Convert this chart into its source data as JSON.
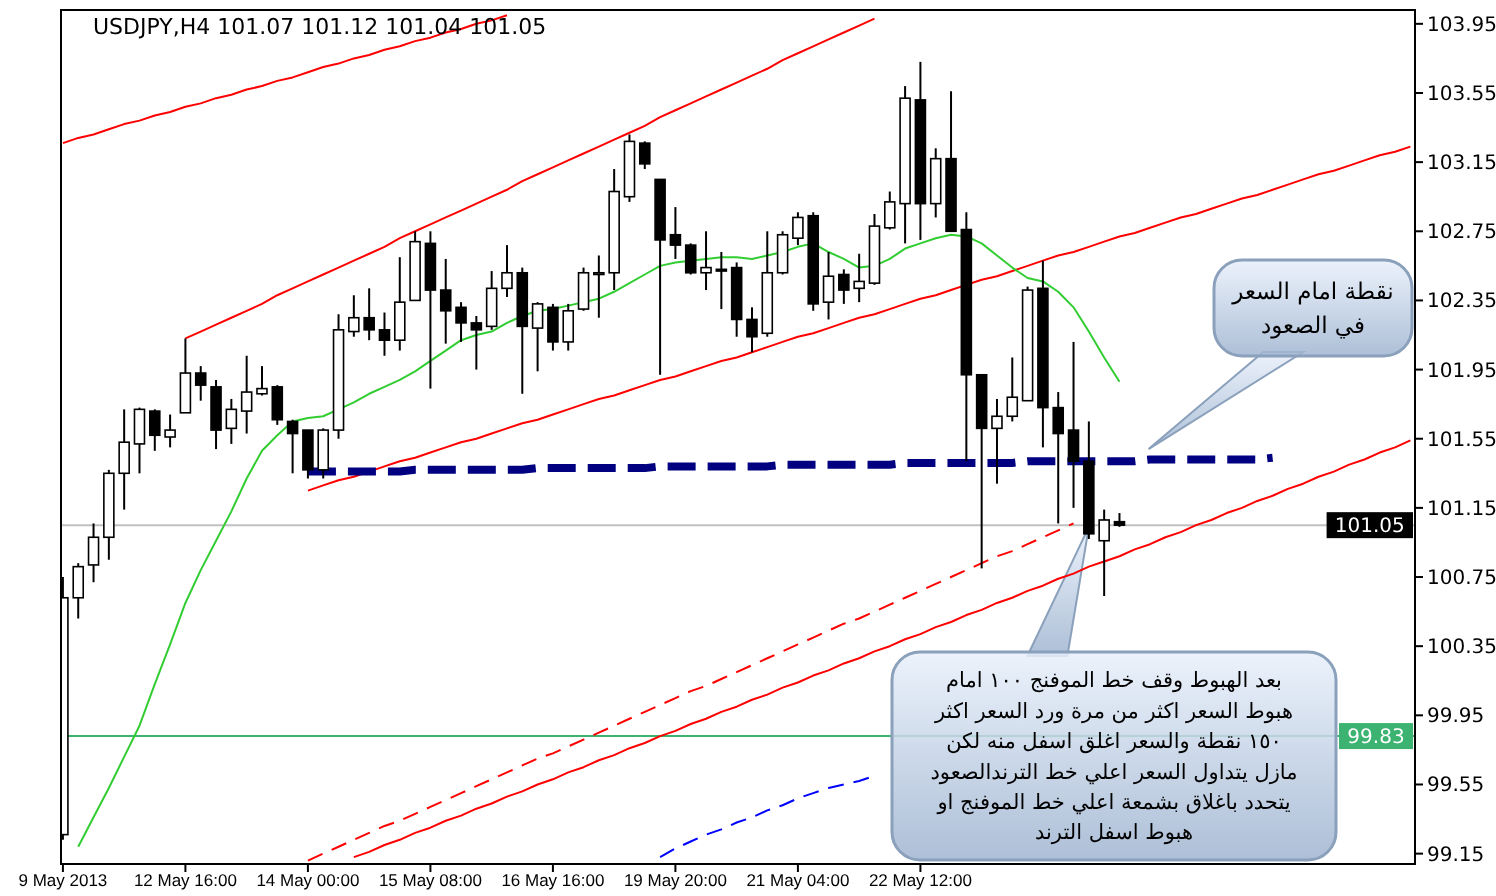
{
  "chart_data": {
    "type": "candlestick",
    "title": "USDJPY,H4  101.07 101.12 101.04 101.05",
    "categories": [
      "9 May 2013",
      null,
      null,
      null,
      null,
      null,
      null,
      null,
      "12 May 16:00",
      null,
      null,
      null,
      null,
      null,
      null,
      null,
      "14 May 00:00",
      null,
      null,
      null,
      null,
      null,
      null,
      null,
      "15 May 08:00",
      null,
      null,
      null,
      null,
      null,
      null,
      null,
      "16 May 16:00",
      null,
      null,
      null,
      null,
      null,
      null,
      null,
      "19 May 20:00",
      null,
      null,
      null,
      null,
      null,
      null,
      null,
      "21 May 04:00",
      null,
      null,
      null,
      null,
      null,
      null,
      null,
      "22 May 12:00",
      null,
      null,
      null,
      null,
      null,
      null,
      null,
      null,
      null,
      null,
      null,
      null,
      null,
      null,
      null,
      null,
      null,
      null,
      null,
      null,
      null,
      null,
      null,
      null,
      null,
      null,
      null,
      null,
      null,
      null,
      null,
      null
    ],
    "ohlc": [
      [
        99.26,
        100.75,
        99.23,
        100.63
      ],
      [
        100.63,
        100.83,
        100.51,
        100.81
      ],
      [
        100.82,
        101.06,
        100.72,
        100.98
      ],
      [
        100.98,
        101.37,
        100.85,
        101.35
      ],
      [
        101.35,
        101.72,
        101.14,
        101.53
      ],
      [
        101.52,
        101.73,
        101.35,
        101.72
      ],
      [
        101.71,
        101.72,
        101.48,
        101.57
      ],
      [
        101.56,
        101.69,
        101.5,
        101.6
      ],
      [
        101.7,
        102.13,
        101.7,
        101.93
      ],
      [
        101.93,
        101.97,
        101.77,
        101.86
      ],
      [
        101.85,
        101.89,
        101.49,
        101.6
      ],
      [
        101.61,
        101.78,
        101.52,
        101.72
      ],
      [
        101.71,
        102.03,
        101.58,
        101.82
      ],
      [
        101.81,
        101.97,
        101.8,
        101.84
      ],
      [
        101.85,
        101.86,
        101.63,
        101.66
      ],
      [
        101.65,
        101.66,
        101.35,
        101.58
      ],
      [
        101.6,
        101.6,
        101.32,
        101.37
      ],
      [
        101.37,
        101.61,
        101.32,
        101.6
      ],
      [
        101.6,
        102.27,
        101.55,
        102.18
      ],
      [
        102.17,
        102.38,
        102.14,
        102.25
      ],
      [
        102.25,
        102.42,
        102.12,
        102.18
      ],
      [
        102.18,
        102.28,
        102.03,
        102.12
      ],
      [
        102.12,
        102.6,
        102.06,
        102.34
      ],
      [
        102.35,
        102.75,
        102.35,
        102.69
      ],
      [
        102.68,
        102.75,
        101.84,
        102.41
      ],
      [
        102.41,
        102.59,
        102.1,
        102.29
      ],
      [
        102.31,
        102.34,
        102.11,
        102.22
      ],
      [
        102.22,
        102.26,
        101.95,
        102.18
      ],
      [
        102.2,
        102.52,
        102.18,
        102.42
      ],
      [
        102.42,
        102.67,
        102.37,
        102.51
      ],
      [
        102.51,
        102.54,
        101.81,
        102.2
      ],
      [
        102.19,
        102.34,
        101.94,
        102.33
      ],
      [
        102.31,
        102.33,
        102.06,
        102.11
      ],
      [
        102.11,
        102.33,
        102.06,
        102.29
      ],
      [
        102.3,
        102.54,
        102.29,
        102.51
      ],
      [
        102.5,
        102.61,
        102.25,
        102.51
      ],
      [
        102.51,
        103.11,
        102.41,
        102.98
      ],
      [
        102.95,
        103.31,
        102.92,
        103.27
      ],
      [
        103.26,
        103.27,
        103.11,
        103.14
      ],
      [
        103.05,
        103.05,
        101.92,
        102.7
      ],
      [
        102.73,
        102.89,
        102.59,
        102.67
      ],
      [
        102.67,
        102.68,
        102.5,
        102.51
      ],
      [
        102.51,
        102.75,
        102.41,
        102.54
      ],
      [
        102.53,
        102.63,
        102.3,
        102.52
      ],
      [
        102.54,
        102.57,
        102.14,
        102.24
      ],
      [
        102.24,
        102.31,
        102.05,
        102.14
      ],
      [
        102.16,
        102.75,
        102.14,
        102.51
      ],
      [
        102.51,
        102.75,
        102.5,
        102.73
      ],
      [
        102.71,
        102.86,
        102.67,
        102.83
      ],
      [
        102.84,
        102.86,
        102.29,
        102.33
      ],
      [
        102.34,
        102.63,
        102.24,
        102.49
      ],
      [
        102.5,
        102.53,
        102.33,
        102.41
      ],
      [
        102.42,
        102.62,
        102.34,
        102.46
      ],
      [
        102.45,
        102.85,
        102.44,
        102.78
      ],
      [
        102.77,
        102.98,
        102.76,
        102.92
      ],
      [
        102.91,
        103.59,
        102.68,
        103.52
      ],
      [
        103.51,
        103.73,
        102.7,
        102.91
      ],
      [
        102.91,
        103.23,
        102.83,
        103.17
      ],
      [
        103.17,
        103.56,
        102.75,
        102.75
      ],
      [
        102.76,
        102.86,
        101.42,
        101.92
      ],
      [
        101.92,
        101.92,
        100.8,
        101.61
      ],
      [
        101.61,
        101.78,
        101.29,
        101.68
      ],
      [
        101.68,
        102.02,
        101.65,
        101.79
      ],
      [
        101.77,
        102.43,
        101.77,
        102.41
      ],
      [
        102.42,
        102.58,
        101.5,
        101.73
      ],
      [
        101.73,
        101.82,
        101.06,
        101.58
      ],
      [
        101.6,
        102.11,
        101.15,
        101.42
      ],
      [
        101.42,
        101.65,
        100.97,
        101.0
      ],
      [
        100.96,
        101.14,
        100.64,
        101.08
      ],
      [
        101.07,
        101.12,
        101.04,
        101.05
      ],
      null,
      null,
      null,
      null,
      null,
      null,
      null,
      null,
      null,
      null,
      null,
      null,
      null,
      null,
      null,
      null,
      null,
      null,
      null
    ],
    "series": [
      {
        "type": "line",
        "color": "#ff0000",
        "line_style": "solid",
        "values": [
          103.26,
          103.29,
          103.31,
          103.34,
          103.37,
          103.39,
          103.42,
          103.44,
          103.47,
          103.49,
          103.52,
          103.54,
          103.57,
          103.59,
          103.62,
          103.64,
          103.67,
          103.7,
          103.72,
          103.75,
          103.77,
          103.8,
          103.82,
          103.85,
          103.87,
          103.9,
          103.92,
          103.95,
          103.97,
          104.0,
          null,
          null,
          null,
          null,
          null,
          null,
          null,
          null,
          null,
          null,
          null,
          null,
          null,
          null,
          null,
          null,
          null,
          null,
          null,
          null,
          null,
          null,
          null,
          null,
          null,
          null,
          null,
          null,
          null,
          null,
          null,
          null,
          null,
          null,
          null,
          null,
          null,
          null,
          null,
          null,
          null,
          null,
          null,
          null,
          null,
          null,
          null,
          null,
          null,
          null,
          null,
          null,
          null,
          null,
          null,
          null,
          null,
          null,
          null
        ]
      },
      {
        "type": "line",
        "color": "#ff0000",
        "line_style": "solid",
        "values": [
          null,
          null,
          null,
          null,
          null,
          null,
          null,
          null,
          102.13,
          102.17,
          102.21,
          102.25,
          102.29,
          102.33,
          102.38,
          102.42,
          102.46,
          102.5,
          102.54,
          102.58,
          102.62,
          102.66,
          102.71,
          102.75,
          102.79,
          102.83,
          102.87,
          102.91,
          102.95,
          102.99,
          103.04,
          103.08,
          103.12,
          103.16,
          103.2,
          103.24,
          103.28,
          103.32,
          103.36,
          103.41,
          103.45,
          103.49,
          103.53,
          103.57,
          103.61,
          103.65,
          103.69,
          103.74,
          103.78,
          103.82,
          103.86,
          103.9,
          103.94,
          103.98,
          null,
          null,
          null,
          null,
          null,
          null,
          null,
          null,
          null,
          null,
          null,
          null,
          null,
          null,
          null,
          null,
          null,
          null,
          null,
          null,
          null,
          null,
          null,
          null,
          null,
          null,
          null,
          null,
          null,
          null,
          null,
          null,
          null,
          null,
          null
        ]
      },
      {
        "type": "line",
        "color": "#ff0000",
        "line_style": "solid",
        "values": [
          null,
          null,
          null,
          null,
          null,
          null,
          null,
          null,
          null,
          null,
          null,
          null,
          null,
          null,
          null,
          null,
          101.25,
          101.28,
          101.31,
          101.33,
          101.36,
          101.39,
          101.42,
          101.44,
          101.47,
          101.5,
          101.53,
          101.55,
          101.58,
          101.61,
          101.64,
          101.66,
          101.69,
          101.72,
          101.75,
          101.78,
          101.8,
          101.83,
          101.86,
          101.89,
          101.91,
          101.94,
          101.97,
          102.0,
          102.02,
          102.05,
          102.08,
          102.11,
          102.14,
          102.16,
          102.19,
          102.22,
          102.25,
          102.27,
          102.3,
          102.33,
          102.36,
          102.38,
          102.41,
          102.44,
          102.47,
          102.49,
          102.52,
          102.55,
          102.58,
          102.61,
          102.63,
          102.66,
          102.69,
          102.72,
          102.74,
          102.77,
          102.8,
          102.83,
          102.85,
          102.88,
          102.91,
          102.94,
          102.96,
          102.99,
          103.02,
          103.05,
          103.08,
          103.1,
          103.13,
          103.16,
          103.19,
          103.21,
          103.24
        ]
      },
      {
        "type": "line",
        "color": "#ff0000",
        "line_style": "solid",
        "values": [
          null,
          null,
          null,
          null,
          null,
          null,
          null,
          null,
          null,
          null,
          null,
          null,
          null,
          null,
          null,
          null,
          null,
          null,
          null,
          99.13,
          99.16,
          99.2,
          99.23,
          99.27,
          99.3,
          99.34,
          99.37,
          99.41,
          99.44,
          99.48,
          99.51,
          99.55,
          99.58,
          99.62,
          99.65,
          99.69,
          99.72,
          99.76,
          99.79,
          99.83,
          99.86,
          99.9,
          99.93,
          99.97,
          100.0,
          100.04,
          100.07,
          100.11,
          100.14,
          100.18,
          100.21,
          100.25,
          100.28,
          100.32,
          100.35,
          100.39,
          100.42,
          100.46,
          100.49,
          100.53,
          100.56,
          100.6,
          100.63,
          100.67,
          100.7,
          100.74,
          100.77,
          100.81,
          100.84,
          100.87,
          100.91,
          100.94,
          100.98,
          101.01,
          101.05,
          101.08,
          101.12,
          101.15,
          101.19,
          101.22,
          101.26,
          101.29,
          101.33,
          101.36,
          101.4,
          101.43,
          101.47,
          101.5,
          101.54
        ]
      },
      {
        "type": "line",
        "color": "#ff0000",
        "line_style": "dashed",
        "values": [
          null,
          null,
          null,
          null,
          null,
          null,
          null,
          null,
          null,
          null,
          null,
          null,
          null,
          null,
          null,
          null,
          99.11,
          99.15,
          99.19,
          99.23,
          99.27,
          99.31,
          99.34,
          99.38,
          99.42,
          99.46,
          99.5,
          99.54,
          99.58,
          99.62,
          99.66,
          99.7,
          99.73,
          99.77,
          99.81,
          99.85,
          99.89,
          99.93,
          99.97,
          100.01,
          100.05,
          100.09,
          100.12,
          100.16,
          100.2,
          100.24,
          100.28,
          100.32,
          100.36,
          100.4,
          100.44,
          100.48,
          100.51,
          100.55,
          100.59,
          100.63,
          100.67,
          100.71,
          100.75,
          100.79,
          100.83,
          100.87,
          100.9,
          100.94,
          100.98,
          101.02,
          101.06,
          null,
          null,
          null,
          null,
          null,
          null,
          null,
          null,
          null,
          null,
          null,
          null,
          null,
          null,
          null,
          null,
          null,
          null,
          null,
          null,
          null,
          null
        ]
      },
      {
        "type": "line",
        "color": "#000080",
        "line_style": "dashed",
        "values": [
          null,
          null,
          null,
          null,
          null,
          null,
          null,
          null,
          null,
          null,
          null,
          null,
          null,
          null,
          null,
          null,
          101.36,
          101.36,
          101.36,
          101.36,
          101.36,
          101.36,
          101.36,
          101.37,
          101.37,
          101.37,
          101.37,
          101.37,
          101.37,
          101.37,
          101.37,
          101.38,
          101.38,
          101.38,
          101.38,
          101.38,
          101.38,
          101.38,
          101.38,
          101.39,
          101.39,
          101.39,
          101.39,
          101.39,
          101.39,
          101.39,
          101.39,
          101.4,
          101.4,
          101.4,
          101.4,
          101.4,
          101.4,
          101.4,
          101.4,
          101.41,
          101.41,
          101.41,
          101.41,
          101.41,
          101.41,
          101.41,
          101.41,
          101.42,
          101.42,
          101.42,
          101.42,
          101.42,
          101.42,
          101.42,
          101.42,
          101.43,
          101.43,
          101.43,
          101.43,
          101.43,
          101.43,
          101.43,
          101.43,
          101.44,
          null,
          null,
          null,
          null,
          null,
          null,
          null,
          null,
          null
        ]
      },
      {
        "type": "line",
        "color": "#32cd32",
        "line_style": "solid",
        "values": [
          null,
          99.19,
          99.36,
          99.53,
          99.71,
          99.89,
          100.13,
          100.36,
          100.6,
          100.79,
          100.96,
          101.13,
          101.32,
          101.48,
          101.57,
          101.65,
          101.67,
          101.68,
          101.72,
          101.76,
          101.81,
          101.85,
          101.89,
          101.94,
          102.0,
          102.06,
          102.12,
          102.15,
          102.17,
          102.22,
          102.26,
          102.29,
          102.3,
          102.32,
          102.34,
          102.36,
          102.4,
          102.45,
          102.5,
          102.55,
          102.57,
          102.58,
          102.59,
          102.6,
          102.6,
          102.59,
          102.61,
          102.63,
          102.66,
          102.68,
          102.63,
          102.59,
          102.54,
          102.55,
          102.59,
          102.65,
          102.68,
          102.71,
          102.73,
          102.72,
          102.68,
          102.61,
          102.54,
          102.48,
          102.46,
          102.4,
          102.31,
          102.17,
          102.02,
          101.88,
          null,
          null,
          null,
          null,
          null,
          null,
          null,
          null,
          null,
          null,
          null,
          null,
          null,
          null,
          null,
          null,
          null,
          null,
          null
        ]
      },
      {
        "type": "line",
        "color": "#0000ff",
        "line_style": "dashed",
        "values": [
          null,
          null,
          null,
          null,
          null,
          null,
          null,
          null,
          null,
          null,
          null,
          null,
          null,
          null,
          null,
          null,
          null,
          null,
          null,
          null,
          null,
          null,
          null,
          null,
          null,
          null,
          null,
          null,
          null,
          null,
          null,
          null,
          null,
          null,
          null,
          null,
          null,
          null,
          null,
          99.13,
          99.18,
          99.22,
          99.26,
          99.29,
          99.33,
          99.36,
          99.4,
          99.43,
          99.47,
          99.5,
          99.53,
          99.55,
          99.57,
          99.6,
          null,
          null,
          null,
          null,
          null,
          null,
          null,
          null,
          null,
          null,
          null,
          null,
          null,
          null,
          null,
          null,
          null,
          null,
          null,
          null,
          null,
          null,
          null,
          null,
          null,
          null,
          null,
          null,
          null,
          null,
          null,
          null,
          null,
          null,
          null
        ]
      }
    ],
    "ref_lines": [
      {
        "axis": "y",
        "value": 101.05,
        "label": "101.05",
        "color": "#c0c0c0"
      },
      {
        "axis": "y",
        "value": 99.83,
        "label": "99.83",
        "color": "#3cb371"
      }
    ],
    "ylim": [
      99.09,
      104.03
    ],
    "yticks": [
      99.15,
      99.55,
      99.95,
      100.35,
      100.75,
      101.15,
      101.55,
      101.95,
      102.35,
      102.75,
      103.15,
      103.55,
      103.95
    ],
    "annotations": [
      "نقطة امام السعر\nفي الصعود",
      "بعد الهبوط وقف خط الموفنج ١٠٠ امام\nهبوط السعر اكثر من مرة ورد السعر اكثر\n١٥٠ نقطة  والسعر اغلق اسفل منه لكن\nمازل يتداول السعر اعلي خط الترندالصعود\nيتحدد باغلاق بشمعة اعلي خط الموفنج او\nهبوط اسفل الترند"
    ]
  }
}
